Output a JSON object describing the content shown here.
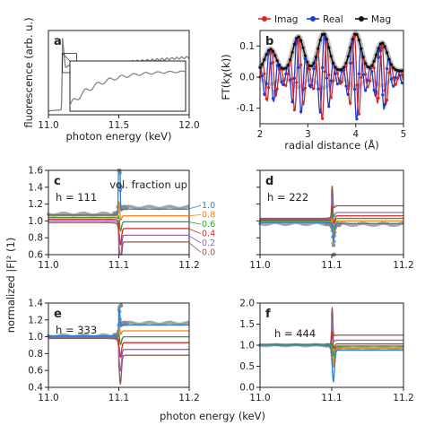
{
  "figure": {
    "ylabel_left": "normalized |F|² (1)",
    "xlabel_bottom": "photon energy (keV)"
  },
  "chart_data": [
    {
      "id": "a",
      "panel_label": "a",
      "type": "line",
      "xlabel": "photon energy (keV)",
      "ylabel": "fluorescence (arb. u.)",
      "xlim": [
        11.0,
        12.0
      ],
      "xticks": [
        "11.0",
        "11.5",
        "12.0"
      ],
      "yticks": [],
      "grid": false,
      "inset": true,
      "inset_xlim": [
        11.1,
        11.2
      ],
      "series": [
        {
          "color": "#7f7f7f",
          "x": [
            11.0,
            11.08,
            11.095,
            11.1,
            11.105,
            11.12,
            11.15,
            11.2,
            11.3,
            11.5,
            11.7,
            11.9,
            12.0
          ],
          "values": [
            0.0,
            0.02,
            0.1,
            0.95,
            0.62,
            0.58,
            0.57,
            0.58,
            0.6,
            0.63,
            0.66,
            0.69,
            0.7
          ]
        }
      ]
    },
    {
      "id": "b",
      "panel_label": "b",
      "type": "line",
      "xlabel": "radial distance (Å)",
      "ylabel": "FT(kχ(k))",
      "xlim": [
        2,
        5
      ],
      "ylim": [
        -0.15,
        0.15
      ],
      "xticks": [
        "2",
        "3",
        "4",
        "5"
      ],
      "yticks": [
        "-0.1",
        "0.0",
        "0.1"
      ],
      "legend": {
        "position": "top",
        "entries": [
          "Imag",
          "Real",
          "Mag"
        ]
      },
      "colors": {
        "Imag": "#d62728",
        "Real": "#1f3bd6",
        "Mag": "#111111"
      },
      "peaks_x": [
        2.22,
        2.8,
        3.33,
        4.0,
        4.55
      ],
      "series": [
        {
          "name": "Imag",
          "x": [
            2.0,
            2.2,
            2.4,
            2.6,
            2.8,
            3.0,
            3.2,
            3.4,
            3.6,
            3.8,
            4.0,
            4.2,
            4.4,
            4.6,
            4.8,
            5.0
          ],
          "values": [
            0.0,
            0.06,
            -0.05,
            0.04,
            -0.11,
            0.02,
            0.12,
            -0.09,
            0.01,
            0.03,
            -0.12,
            0.05,
            0.09,
            -0.07,
            0.03,
            0.0
          ]
        },
        {
          "name": "Real",
          "x": [
            2.0,
            2.2,
            2.4,
            2.6,
            2.8,
            3.0,
            3.2,
            3.4,
            3.6,
            3.8,
            4.0,
            4.2,
            4.4,
            4.6,
            4.8,
            5.0
          ],
          "values": [
            0.02,
            -0.06,
            0.05,
            -0.03,
            0.11,
            -0.03,
            -0.11,
            0.1,
            0.0,
            -0.02,
            0.12,
            -0.06,
            -0.08,
            0.08,
            -0.03,
            0.01
          ]
        },
        {
          "name": "Mag",
          "x": [
            2.0,
            2.22,
            2.5,
            2.8,
            3.0,
            3.33,
            3.65,
            4.0,
            4.25,
            4.55,
            5.0
          ],
          "values": [
            0.02,
            0.08,
            0.02,
            0.12,
            0.04,
            0.13,
            0.02,
            0.13,
            0.04,
            0.1,
            0.02
          ]
        }
      ]
    },
    {
      "id": "c",
      "panel_label": "c",
      "type": "line",
      "annotation_h": "h = 111",
      "legend_title": "vol. fraction up",
      "xlim": [
        11.0,
        11.2
      ],
      "ylim": [
        0.6,
        1.6
      ],
      "xticks": [
        "11.0",
        "11.1",
        "11.2"
      ],
      "yticks": [
        "0.6",
        "0.8",
        "1.0",
        "1.2",
        "1.4",
        "1.6"
      ],
      "ytick_values": [
        0.6,
        0.8,
        1.0,
        1.2,
        1.4,
        1.6
      ],
      "edge_x": 11.1,
      "fractions": [
        {
          "label": "1.0",
          "color": "#2a7fd4",
          "pre": 1.07,
          "post": 1.14,
          "peak": 1.38,
          "dip": -0.02
        },
        {
          "label": "0.8",
          "color": "#ff7f0e",
          "pre": 1.06,
          "post": 1.06,
          "peak": 0.2,
          "dip": -0.06
        },
        {
          "label": "0.6",
          "color": "#2ca02c",
          "pre": 1.04,
          "post": 0.99,
          "peak": 0.1,
          "dip": -0.12
        },
        {
          "label": "0.4",
          "color": "#d62728",
          "pre": 1.02,
          "post": 0.91,
          "peak": 0.05,
          "dip": -0.2
        },
        {
          "label": "0.2",
          "color": "#9467bd",
          "pre": 1.0,
          "post": 0.83,
          "peak": 0.03,
          "dip": -0.28
        },
        {
          "label": "0.0",
          "color": "#8c564b",
          "pre": 0.98,
          "post": 0.75,
          "peak": 0.02,
          "dip": -0.34
        }
      ],
      "measured": {
        "color": "#8a8a8a",
        "pre": 1.08,
        "post": 1.16,
        "peak": 1.4,
        "dip": -0.03,
        "outlier_y": 1.4
      }
    },
    {
      "id": "d",
      "panel_label": "d",
      "type": "line",
      "annotation_h": "h = 222",
      "xlim": [
        11.0,
        11.2
      ],
      "ylim": [
        0.6,
        1.6
      ],
      "xticks": [
        "11.0",
        "11.1",
        "11.2"
      ],
      "yticks": [],
      "ytick_values": [
        0.6,
        0.8,
        1.0,
        1.2,
        1.4,
        1.6
      ],
      "edge_x": 11.1,
      "fractions": [
        {
          "label": "1.0",
          "color": "#2a7fd4",
          "pre": 0.98,
          "post": 0.97,
          "peak": 0.1,
          "dip": -0.22
        },
        {
          "label": "0.8",
          "color": "#ff7f0e",
          "pre": 0.99,
          "post": 1.0,
          "peak": 0.12,
          "dip": -0.18
        },
        {
          "label": "0.6",
          "color": "#2ca02c",
          "pre": 1.0,
          "post": 1.03,
          "peak": 0.14,
          "dip": -0.14
        },
        {
          "label": "0.4",
          "color": "#d62728",
          "pre": 1.01,
          "post": 1.06,
          "peak": 0.16,
          "dip": -0.1
        },
        {
          "label": "0.2",
          "color": "#9467bd",
          "pre": 1.02,
          "post": 1.1,
          "peak": 0.2,
          "dip": -0.06
        },
        {
          "label": "0.0",
          "color": "#8c564b",
          "pre": 1.03,
          "post": 1.18,
          "peak": 0.25,
          "dip": -0.03
        }
      ],
      "measured": {
        "color": "#8a8a8a",
        "pre": 0.97,
        "post": 0.96,
        "peak": 0.08,
        "dip": -0.26,
        "outlier_y": 0.6
      }
    },
    {
      "id": "e",
      "panel_label": "e",
      "type": "line",
      "annotation_h": "h = 333",
      "xlim": [
        11.0,
        11.2
      ],
      "ylim": [
        0.4,
        1.4
      ],
      "xticks": [
        "11.0",
        "11.1",
        "11.2"
      ],
      "yticks": [
        "0.4",
        "0.6",
        "0.8",
        "1.0",
        "1.2",
        "1.4"
      ],
      "ytick_values": [
        0.4,
        0.6,
        0.8,
        1.0,
        1.2,
        1.4
      ],
      "edge_x": 11.1,
      "fractions": [
        {
          "label": "1.0",
          "color": "#2a7fd4",
          "pre": 1.01,
          "post": 1.14,
          "peak": 0.22,
          "dip": -0.02
        },
        {
          "label": "0.8",
          "color": "#ff7f0e",
          "pre": 1.01,
          "post": 1.07,
          "peak": 0.12,
          "dip": -0.05
        },
        {
          "label": "0.6",
          "color": "#2ca02c",
          "pre": 1.0,
          "post": 1.0,
          "peak": 0.08,
          "dip": -0.1
        },
        {
          "label": "0.4",
          "color": "#d62728",
          "pre": 1.0,
          "post": 0.93,
          "peak": 0.05,
          "dip": -0.18
        },
        {
          "label": "0.2",
          "color": "#9467bd",
          "pre": 0.99,
          "post": 0.85,
          "peak": 0.03,
          "dip": -0.26
        },
        {
          "label": "0.0",
          "color": "#8c564b",
          "pre": 0.98,
          "post": 0.78,
          "peak": 0.02,
          "dip": -0.34
        }
      ],
      "measured": {
        "color": "#8a8a8a",
        "pre": 1.01,
        "post": 1.16,
        "peak": 0.2,
        "dip": -0.02,
        "outlier_y": 1.37
      }
    },
    {
      "id": "f",
      "panel_label": "f",
      "type": "line",
      "annotation_h": "h = 444",
      "xlim": [
        11.0,
        11.2
      ],
      "ylim": [
        0.0,
        2.0
      ],
      "xticks": [
        "11.0",
        "11.1",
        "11.2"
      ],
      "yticks": [
        "0.0",
        "0.5",
        "1.0",
        "1.5",
        "2.0"
      ],
      "ytick_values": [
        0.0,
        0.5,
        1.0,
        1.5,
        2.0
      ],
      "edge_x": 11.1,
      "fractions": [
        {
          "label": "1.0",
          "color": "#2a7fd4",
          "pre": 1.0,
          "post": 0.88,
          "peak": 0.05,
          "dip": -0.75
        },
        {
          "label": "0.8",
          "color": "#ff7f0e",
          "pre": 1.0,
          "post": 0.92,
          "peak": 0.1,
          "dip": -0.45
        },
        {
          "label": "0.6",
          "color": "#2ca02c",
          "pre": 1.01,
          "post": 0.98,
          "peak": 0.2,
          "dip": -0.25
        },
        {
          "label": "0.4",
          "color": "#d62728",
          "pre": 1.01,
          "post": 1.03,
          "peak": 0.35,
          "dip": -0.12
        },
        {
          "label": "0.2",
          "color": "#9467bd",
          "pre": 1.02,
          "post": 1.12,
          "peak": 0.5,
          "dip": -0.05
        },
        {
          "label": "0.0",
          "color": "#8c564b",
          "pre": 1.02,
          "post": 1.24,
          "peak": 0.65,
          "dip": -0.02
        }
      ],
      "measured": {
        "color": "#8a8a8a",
        "pre": 1.0,
        "post": 0.93,
        "peak": 0.08,
        "dip": -0.4,
        "outlier_y": null
      }
    }
  ]
}
